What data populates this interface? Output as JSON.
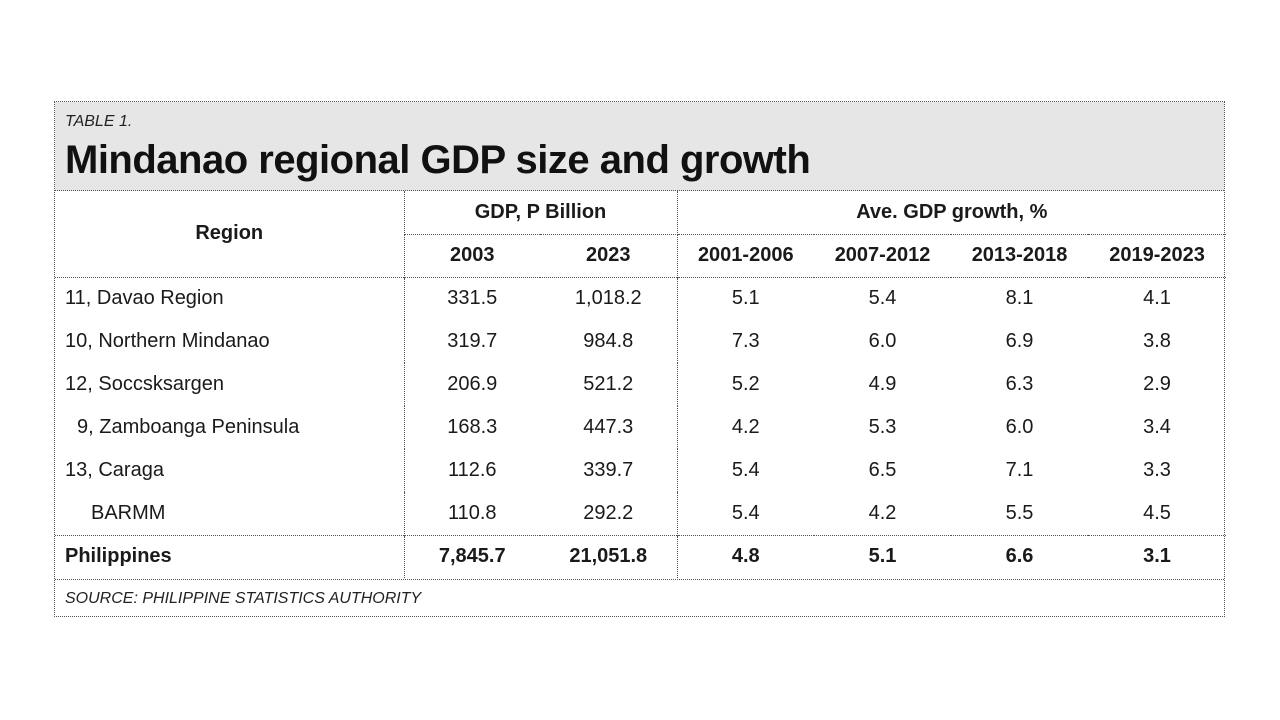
{
  "label": "TABLE 1.",
  "title": "Mindanao regional GDP size and growth",
  "headers": {
    "region": "Region",
    "gdp_group": "GDP, P Billion",
    "growth_group": "Ave. GDP growth, %",
    "years": [
      "2003",
      "2023"
    ],
    "periods": [
      "2001-2006",
      "2007-2012",
      "2013-2018",
      "2019-2023"
    ]
  },
  "rows": [
    {
      "region": "11, Davao Region",
      "gdp": [
        "331.5",
        "1,018.2"
      ],
      "growth": [
        "5.1",
        "5.4",
        "8.1",
        "4.1"
      ]
    },
    {
      "region": "10, Northern Mindanao",
      "gdp": [
        "319.7",
        "984.8"
      ],
      "growth": [
        "7.3",
        "6.0",
        "6.9",
        "3.8"
      ]
    },
    {
      "region": "12, Soccsksargen",
      "gdp": [
        "206.9",
        "521.2"
      ],
      "growth": [
        "5.2",
        "4.9",
        "6.3",
        "2.9"
      ]
    },
    {
      "region": "9, Zamboanga Peninsula",
      "gdp": [
        "168.3",
        "447.3"
      ],
      "growth": [
        "4.2",
        "5.3",
        "6.0",
        "3.4"
      ]
    },
    {
      "region": "13, Caraga",
      "gdp": [
        "112.6",
        "339.7"
      ],
      "growth": [
        "5.4",
        "6.5",
        "7.1",
        "3.3"
      ]
    },
    {
      "region": "BARMM",
      "gdp": [
        "110.8",
        "292.2"
      ],
      "growth": [
        "5.4",
        "4.2",
        "5.5",
        "4.5"
      ]
    }
  ],
  "total": {
    "region": "Philippines",
    "gdp": [
      "7,845.7",
      "21,051.8"
    ],
    "growth": [
      "4.8",
      "5.1",
      "6.6",
      "3.1"
    ]
  },
  "source": "SOURCE: PHILIPPINE STATISTICS AUTHORITY"
}
